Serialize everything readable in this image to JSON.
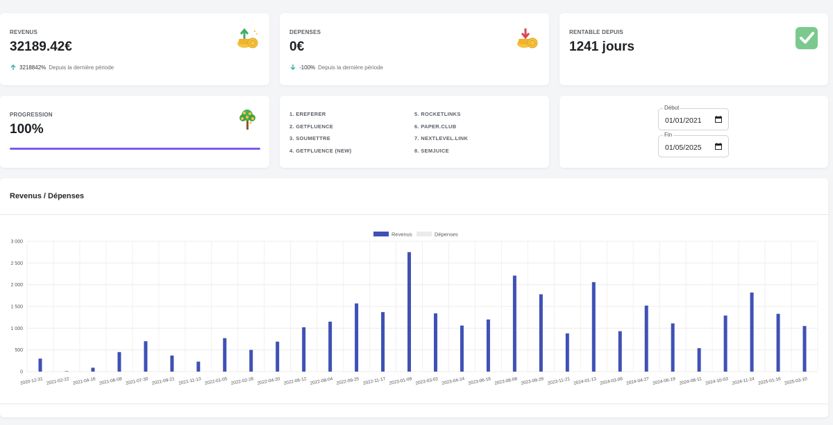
{
  "kpis": {
    "revenus": {
      "label": "REVENUS",
      "value": "32189.42€",
      "pct": "3218842%",
      "since": "Depuis la dernière période"
    },
    "depenses": {
      "label": "DEPENSES",
      "value": "0€",
      "pct": "-100%",
      "since": "Depuis la dernière période"
    },
    "rentable": {
      "label": "RENTABLE DEPUIS",
      "value": "1241 jours"
    },
    "progression": {
      "label": "PROGRESSION",
      "value": "100%",
      "fill": 1.0
    }
  },
  "sites": {
    "col1": [
      "1. EREFERER",
      "2. GETFLUENCE",
      "3. SOUMETTRE",
      "4. GETFLUENCE (NEW)"
    ],
    "col2": [
      "5. ROCKETLINKS",
      "6. PAPER.CLUB",
      "7. NEXTLEVEL.LINK",
      "8. SEMJUICE"
    ]
  },
  "dates": {
    "debut": {
      "label": "Début",
      "value": "01/01/2021"
    },
    "fin": {
      "label": "Fin",
      "value": "01/05/2025"
    }
  },
  "chart": {
    "title": "Revenus / Dépenses"
  },
  "colors": {
    "revenus": "#3f51b5",
    "depenses": "#ebebeb",
    "progress": "#7b5bea",
    "green": "#7cc98f"
  },
  "chart_data": {
    "type": "bar",
    "series": [
      {
        "name": "Revenus",
        "values": [
          300,
          10,
          90,
          450,
          700,
          370,
          230,
          770,
          500,
          690,
          1020,
          1150,
          1570,
          1370,
          2750,
          1340,
          1060,
          1200,
          2210,
          1780,
          880,
          2060,
          930,
          1520,
          1110,
          540,
          1290,
          1820,
          1330,
          1050
        ]
      },
      {
        "name": "Dépenses",
        "values": [
          0,
          0,
          0,
          0,
          0,
          0,
          0,
          0,
          0,
          0,
          0,
          0,
          0,
          0,
          0,
          0,
          0,
          0,
          0,
          0,
          0,
          0,
          0,
          0,
          0,
          0,
          0,
          0,
          0,
          0
        ]
      }
    ],
    "categories": [
      "2020-12-31",
      "2021-02-22",
      "2021-04-16",
      "2021-06-08",
      "2021-07-30",
      "2021-09-21",
      "2021-11-13",
      "2022-01-05",
      "2022-02-26",
      "2022-04-20",
      "2022-06-12",
      "2022-08-04",
      "2022-09-25",
      "2022-11-17",
      "2023-01-09",
      "2023-03-02",
      "2023-04-24",
      "2023-06-16",
      "2023-08-08",
      "2023-09-29",
      "2023-11-21",
      "2024-01-13",
      "2024-03-06",
      "2024-04-27",
      "2024-06-19",
      "2024-08-11",
      "2024-10-03",
      "2024-11-24",
      "2025-01-16",
      "2025-03-10"
    ],
    "y_ticks": [
      "0",
      "500",
      "1 000",
      "1 500",
      "2 000",
      "2 500",
      "3 000"
    ],
    "ylim": [
      0,
      3000
    ],
    "legend": "top-center",
    "grid": true
  }
}
